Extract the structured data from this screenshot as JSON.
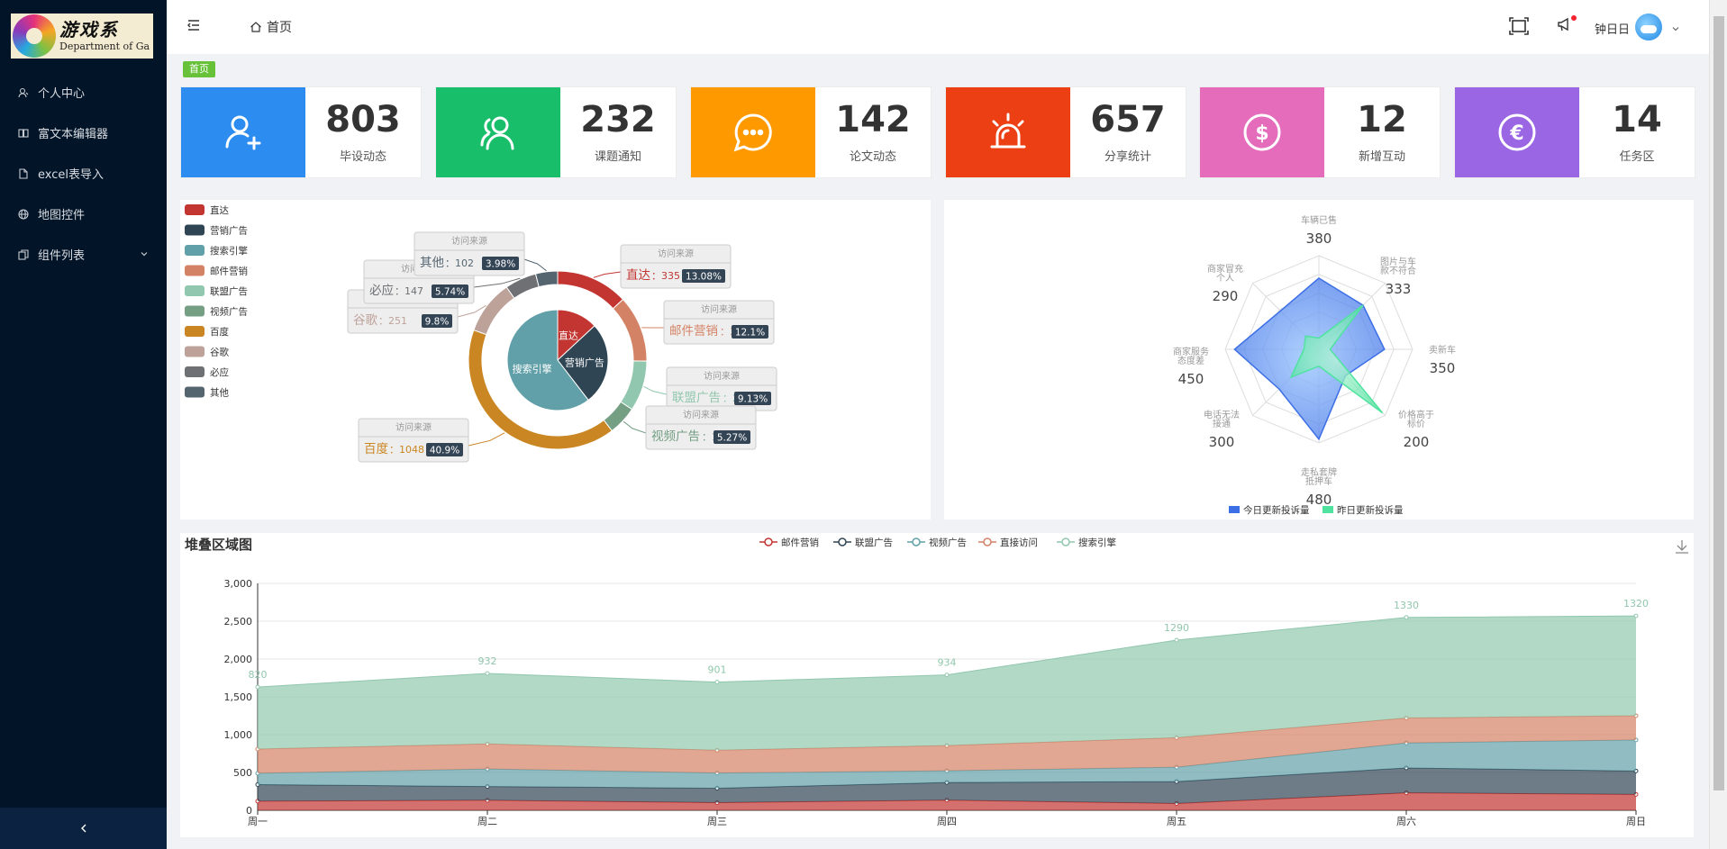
{
  "logo": {
    "cn": "游戏系",
    "en": "Department of Ga"
  },
  "sidebar": {
    "items": [
      {
        "label": "个人中心",
        "icon": "user-icon"
      },
      {
        "label": "富文本编辑器",
        "icon": "book-icon"
      },
      {
        "label": "excel表导入",
        "icon": "document-icon"
      },
      {
        "label": "地图控件",
        "icon": "globe-icon"
      },
      {
        "label": "组件列表",
        "icon": "copy-icon"
      }
    ],
    "collapse_icon": "chevron-left-icon"
  },
  "header": {
    "breadcrumb": "首页",
    "username": "钟日日"
  },
  "tag": "首页",
  "cards": [
    {
      "number": "803",
      "label": "毕设动态",
      "color": "#2d8cf0",
      "icon": "user-add-icon"
    },
    {
      "number": "232",
      "label": "课题通知",
      "color": "#19be6b",
      "icon": "users-icon"
    },
    {
      "number": "142",
      "label": "论文动态",
      "color": "#ff9900",
      "icon": "chat-icon"
    },
    {
      "number": "657",
      "label": "分享统计",
      "color": "#ed3f14",
      "icon": "alarm-icon"
    },
    {
      "number": "12",
      "label": "新增互动",
      "color": "#e46cbb",
      "icon": "dollar-icon"
    },
    {
      "number": "14",
      "label": "任务区",
      "color": "#9a66e4",
      "icon": "euro-icon"
    }
  ],
  "chart_data": [
    {
      "type": "pie",
      "legend": [
        "直达",
        "营销广告",
        "搜索引擎",
        "邮件营销",
        "联盟广告",
        "视频广告",
        "百度",
        "谷歌",
        "必应",
        "其他"
      ],
      "legend_position": "top-left",
      "inner": [
        {
          "name": "直达",
          "value": 335,
          "color": "#c23531"
        },
        {
          "name": "营销广告",
          "value": 679,
          "color": "#2f4554"
        },
        {
          "name": "搜索引擎",
          "value": 1548,
          "color": "#61a0a8"
        }
      ],
      "outer": [
        {
          "name": "直达",
          "value": 335,
          "percent": "13.08%",
          "color": "#c23531"
        },
        {
          "name": "邮件营销",
          "value": 310,
          "percent": "12.1%",
          "color": "#d48265"
        },
        {
          "name": "联盟广告",
          "value": 234,
          "percent": "9.13%",
          "color": "#91c7ae"
        },
        {
          "name": "视频广告",
          "value": 135,
          "percent": "5.27%",
          "color": "#749f83"
        },
        {
          "name": "百度",
          "value": 1048,
          "percent": "40.9%",
          "color": "#ca8622"
        },
        {
          "name": "谷歌",
          "value": 251,
          "percent": "9.8%",
          "color": "#bda29a"
        },
        {
          "name": "必应",
          "value": 147,
          "percent": "5.74%",
          "color": "#6e7074"
        },
        {
          "name": "其他",
          "value": 102,
          "percent": "3.98%",
          "color": "#546570"
        }
      ],
      "label_title": "访问来源"
    },
    {
      "type": "radar",
      "indicators": [
        {
          "name": [
            "车辆已售"
          ],
          "value": "380"
        },
        {
          "name": [
            "图片与车",
            "款不符合"
          ],
          "value": "333"
        },
        {
          "name": [
            "卖新车"
          ],
          "value": "350"
        },
        {
          "name": [
            "价格高于",
            "标价"
          ],
          "value": "200"
        },
        {
          "name": [
            "走私套牌",
            "抵押车"
          ],
          "value": "480"
        },
        {
          "name": [
            "电话无法",
            "接通"
          ],
          "value": "300"
        },
        {
          "name": [
            "商家服务",
            "态度差"
          ],
          "value": "450"
        },
        {
          "name": [
            "商家冒充",
            "个人"
          ],
          "value": "290"
        }
      ],
      "max": 500,
      "series": [
        {
          "name": "今日更新投诉量",
          "values": [
            380,
            333,
            350,
            200,
            480,
            300,
            450,
            290
          ],
          "color": "#3c6fe6"
        },
        {
          "name": "昨日更新投诉量",
          "values": [
            60,
            333,
            60,
            480,
            90,
            210,
            80,
            100
          ],
          "color": "#4fe39f"
        }
      ]
    },
    {
      "type": "area",
      "title": "堆叠区域图",
      "categories": [
        "周一",
        "周二",
        "周三",
        "周四",
        "周五",
        "周六",
        "周日"
      ],
      "y_ticks": [
        "0",
        "500",
        "1,000",
        "1,500",
        "2,000",
        "2,500",
        "3,000"
      ],
      "ylim": [
        0,
        3000
      ],
      "series": [
        {
          "name": "邮件营销",
          "values": [
            120,
            132,
            101,
            134,
            90,
            230,
            210
          ],
          "color": "#c23531"
        },
        {
          "name": "联盟广告",
          "values": [
            220,
            182,
            191,
            234,
            290,
            330,
            310
          ],
          "color": "#2f4554"
        },
        {
          "name": "视频广告",
          "values": [
            150,
            232,
            201,
            154,
            190,
            330,
            410
          ],
          "color": "#61a0a8"
        },
        {
          "name": "直接访问",
          "values": [
            320,
            332,
            301,
            334,
            390,
            330,
            320
          ],
          "color": "#d48265"
        },
        {
          "name": "搜索引擎",
          "values": [
            820,
            932,
            901,
            934,
            1290,
            1330,
            1320
          ],
          "color": "#91c7ae"
        }
      ],
      "top_labels": [
        "820",
        "932",
        "901",
        "934",
        "1290",
        "1330",
        "1320"
      ]
    }
  ]
}
